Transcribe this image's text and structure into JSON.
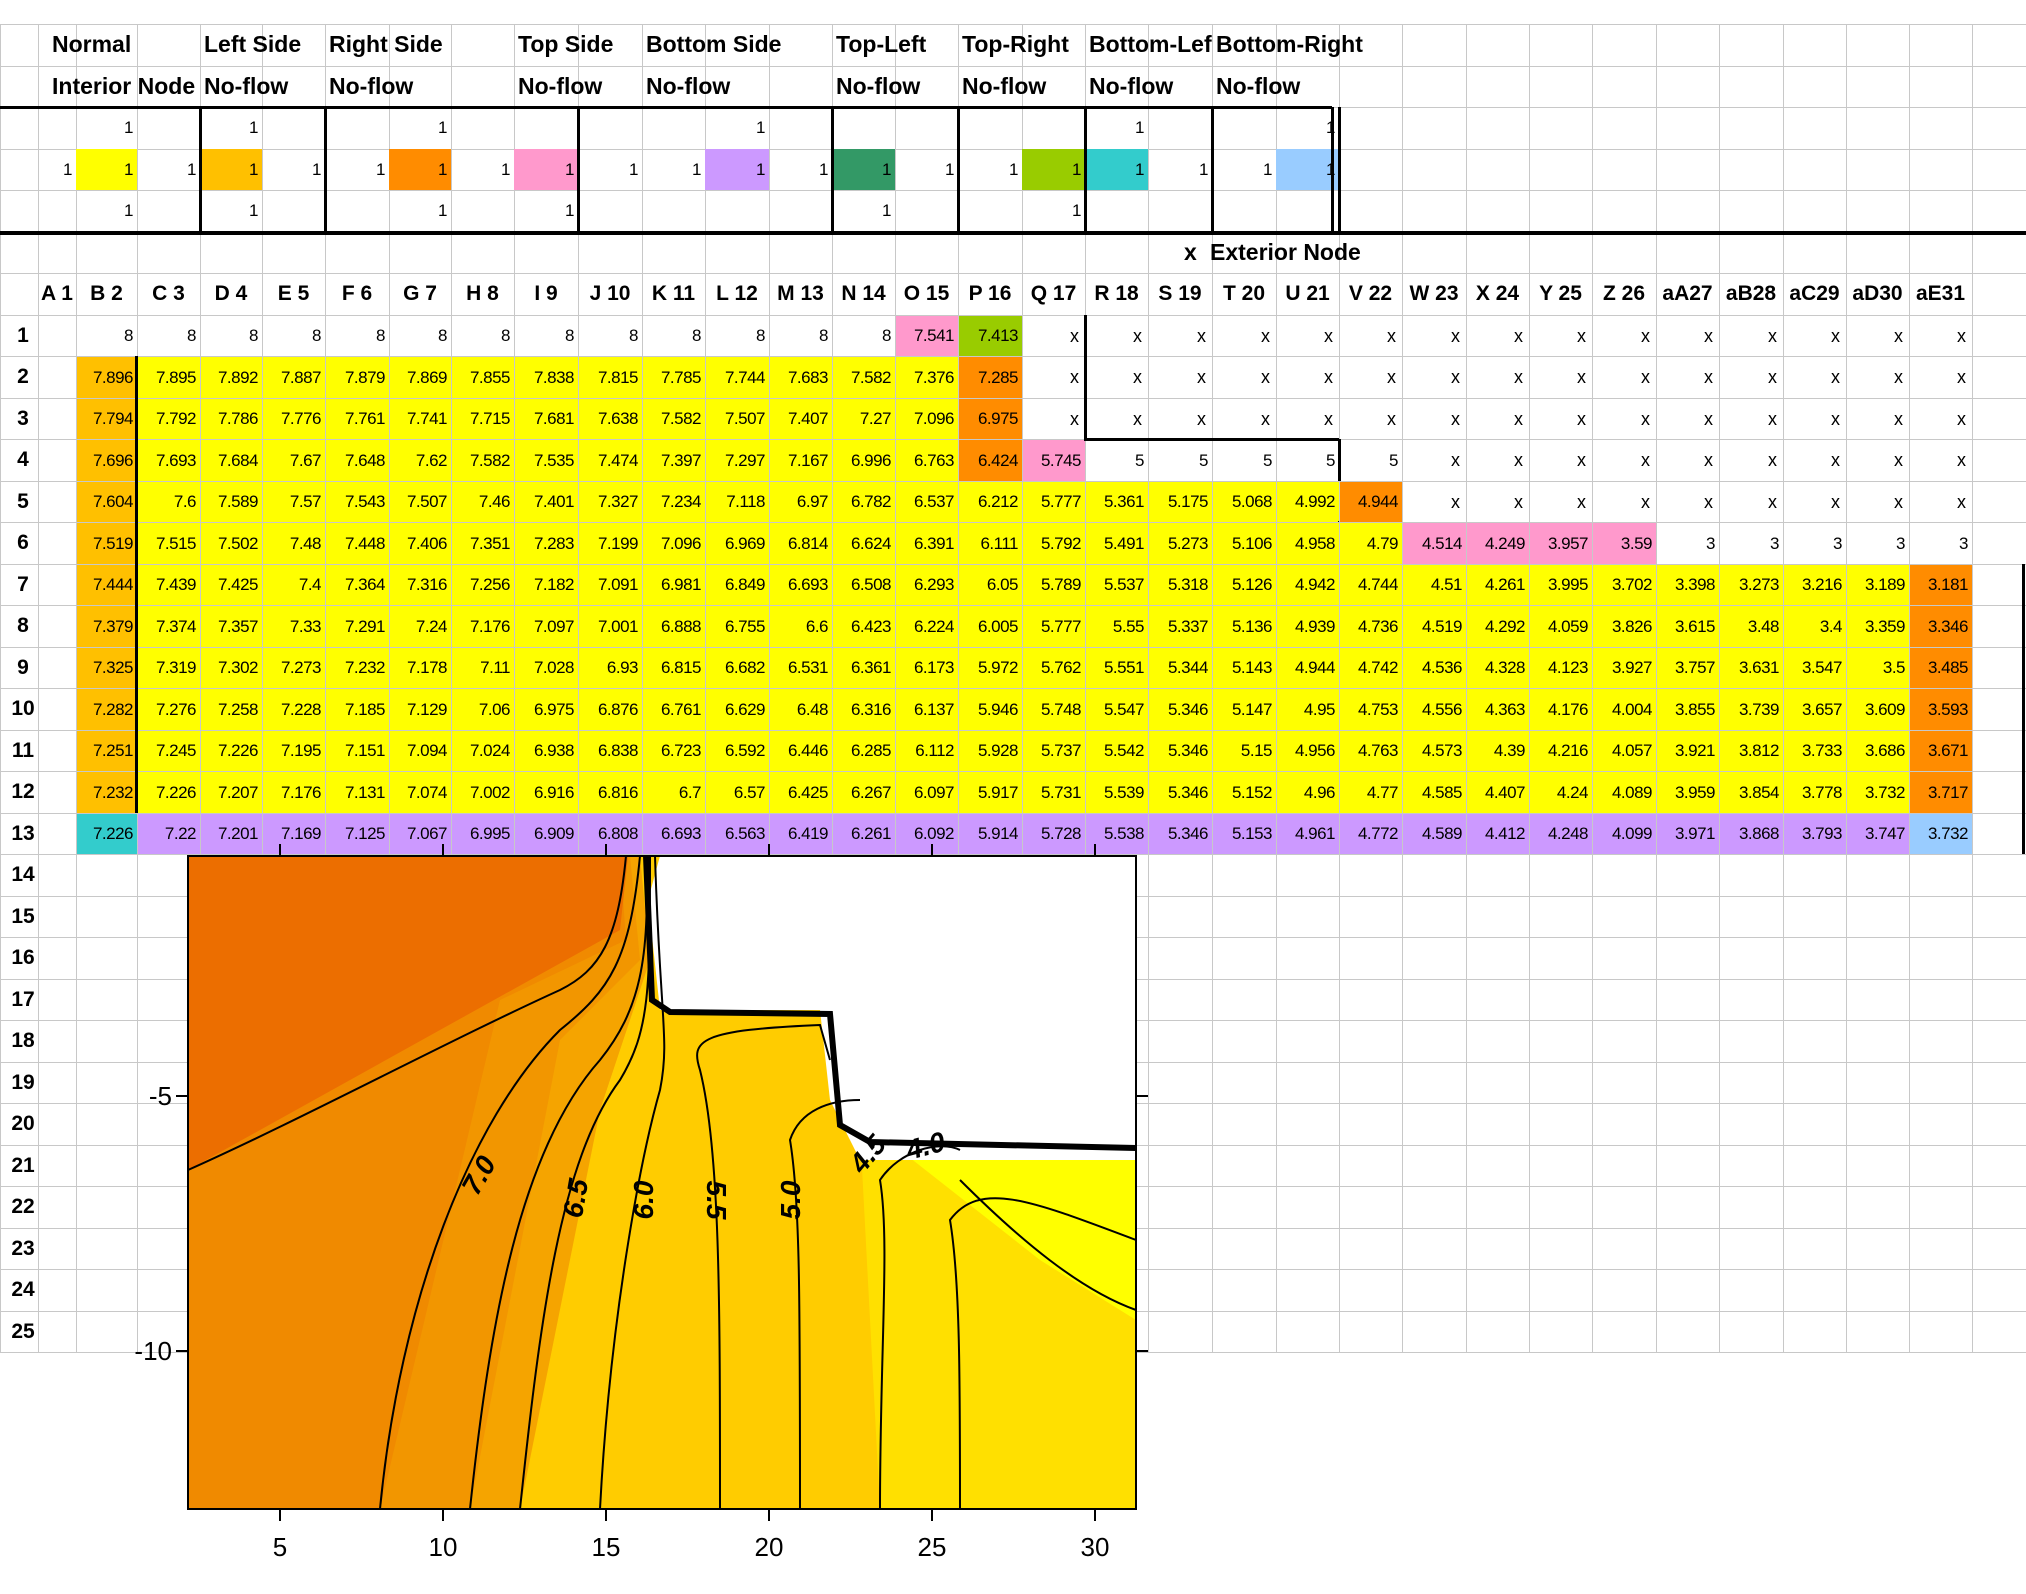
{
  "header_labels": [
    {
      "row": 0,
      "col": 0,
      "text": "Normal"
    },
    {
      "row": 1,
      "col": 0,
      "text": "Interior Node"
    },
    {
      "row": 0,
      "col": 3,
      "text": "Left Side"
    },
    {
      "row": 1,
      "col": 3,
      "text": "No-flow"
    },
    {
      "row": 0,
      "col": 5,
      "text": "Right Side"
    },
    {
      "row": 1,
      "col": 5,
      "text": "No-flow"
    },
    {
      "row": 0,
      "col": 8,
      "text": "Top Side"
    },
    {
      "row": 1,
      "col": 8,
      "text": "No-flow"
    },
    {
      "row": 0,
      "col": 10,
      "text": "Bottom Side"
    },
    {
      "row": 1,
      "col": 10,
      "text": "No-flow"
    },
    {
      "row": 0,
      "col": 13,
      "text": "Top-Left"
    },
    {
      "row": 1,
      "col": 13,
      "text": "No-flow"
    },
    {
      "row": 0,
      "col": 15,
      "text": "Top-Right"
    },
    {
      "row": 1,
      "col": 15,
      "text": "No-flow"
    },
    {
      "row": 0,
      "col": 17,
      "text": "Bottom-Lef"
    },
    {
      "row": 1,
      "col": 17,
      "text": "No-flow"
    },
    {
      "row": 0,
      "col": 19,
      "text": "Bottom-Right"
    },
    {
      "row": 1,
      "col": 19,
      "text": "No-flow"
    }
  ],
  "stencils": [
    {
      "name": "normal",
      "cells": [
        [
          2,
          1,
          "1"
        ],
        [
          3,
          0,
          "1"
        ],
        [
          3,
          1,
          "1"
        ],
        [
          3,
          2,
          "1"
        ],
        [
          4,
          1,
          "1"
        ]
      ],
      "center": [
        3,
        1
      ],
      "color": "#ffff00"
    },
    {
      "name": "left",
      "cells": [
        [
          2,
          3,
          "1"
        ],
        [
          3,
          3,
          "1"
        ],
        [
          3,
          4,
          "1"
        ],
        [
          4,
          3,
          "1"
        ]
      ],
      "center": [
        3,
        3
      ],
      "color": "#ffc000"
    },
    {
      "name": "right",
      "cells": [
        [
          2,
          6,
          "1"
        ],
        [
          3,
          5,
          "1"
        ],
        [
          3,
          6,
          "1"
        ],
        [
          4,
          6,
          "1"
        ]
      ],
      "center": [
        3,
        6
      ],
      "color": "#ff8c00"
    },
    {
      "name": "top",
      "cells": [
        [
          3,
          7,
          "1"
        ],
        [
          3,
          8,
          "1"
        ],
        [
          3,
          9,
          "1"
        ],
        [
          4,
          8,
          "1"
        ]
      ],
      "center": [
        3,
        8
      ],
      "color": "#ff99cc"
    },
    {
      "name": "bottom",
      "cells": [
        [
          2,
          11,
          "1"
        ],
        [
          3,
          10,
          "1"
        ],
        [
          3,
          11,
          "1"
        ],
        [
          3,
          12,
          "1"
        ]
      ],
      "center": [
        3,
        11
      ],
      "color": "#cc99ff"
    },
    {
      "name": "topleft",
      "cells": [
        [
          3,
          13,
          "1"
        ],
        [
          3,
          14,
          "1"
        ],
        [
          4,
          13,
          "1"
        ]
      ],
      "center": [
        3,
        13
      ],
      "color": "#339966"
    },
    {
      "name": "topright",
      "cells": [
        [
          3,
          15,
          "1"
        ],
        [
          3,
          16,
          "1"
        ],
        [
          4,
          16,
          "1"
        ]
      ],
      "center": [
        3,
        16
      ],
      "color": "#99cc00"
    },
    {
      "name": "bottomleft",
      "cells": [
        [
          2,
          17,
          "1"
        ],
        [
          3,
          17,
          "1"
        ],
        [
          3,
          18,
          "1"
        ]
      ],
      "center": [
        3,
        17
      ],
      "color": "#33cccc"
    },
    {
      "name": "bottomright",
      "cells": [
        [
          2,
          20,
          "1"
        ],
        [
          3,
          19,
          "1"
        ],
        [
          3,
          20,
          "1"
        ]
      ],
      "center": [
        3,
        20
      ],
      "color": "#99ccff"
    }
  ],
  "exterior_label": {
    "marker": "x",
    "text": "Exterior Node"
  },
  "col_headers": [
    "A 1",
    "B 2",
    "C 3",
    "D 4",
    "E 5",
    "F 6",
    "G 7",
    "H 8",
    "I 9",
    "J 10",
    "K 11",
    "L 12",
    "M 13",
    "N 14",
    "O 15",
    "P 16",
    "Q 17",
    "R 18",
    "S 19",
    "T 20",
    "U 21",
    "V 22",
    "W 23",
    "X 24",
    "Y 25",
    "Z 26",
    "aA27",
    "aB28",
    "aC29",
    "aD30",
    "aE31"
  ],
  "row_headers": [
    "1",
    "2",
    "3",
    "4",
    "5",
    "6",
    "7",
    "8",
    "9",
    "10",
    "11",
    "12",
    "13",
    "14",
    "15",
    "16",
    "17",
    "18",
    "19",
    "20",
    "21",
    "22",
    "23",
    "24",
    "25"
  ],
  "grid_values": [
    [
      "",
      "8",
      "8",
      "8",
      "8",
      "8",
      "8",
      "8",
      "8",
      "8",
      "8",
      "8",
      "8",
      "8",
      "7.541",
      "7.413",
      "x",
      "x",
      "x",
      "x",
      "x",
      "x",
      "x",
      "x",
      "x",
      "x",
      "x",
      "x",
      "x",
      "x",
      "x"
    ],
    [
      "",
      "7.896",
      "7.895",
      "7.892",
      "7.887",
      "7.879",
      "7.869",
      "7.855",
      "7.838",
      "7.815",
      "7.785",
      "7.744",
      "7.683",
      "7.582",
      "7.376",
      "7.285",
      "x",
      "x",
      "x",
      "x",
      "x",
      "x",
      "x",
      "x",
      "x",
      "x",
      "x",
      "x",
      "x",
      "x",
      "x"
    ],
    [
      "",
      "7.794",
      "7.792",
      "7.786",
      "7.776",
      "7.761",
      "7.741",
      "7.715",
      "7.681",
      "7.638",
      "7.582",
      "7.507",
      "7.407",
      "7.27",
      "7.096",
      "6.975",
      "x",
      "x",
      "x",
      "x",
      "x",
      "x",
      "x",
      "x",
      "x",
      "x",
      "x",
      "x",
      "x",
      "x",
      "x"
    ],
    [
      "",
      "7.696",
      "7.693",
      "7.684",
      "7.67",
      "7.648",
      "7.62",
      "7.582",
      "7.535",
      "7.474",
      "7.397",
      "7.297",
      "7.167",
      "6.996",
      "6.763",
      "6.424",
      "5.745",
      "5",
      "5",
      "5",
      "5",
      "5",
      "x",
      "x",
      "x",
      "x",
      "x",
      "x",
      "x",
      "x",
      "x"
    ],
    [
      "",
      "7.604",
      "7.6",
      "7.589",
      "7.57",
      "7.543",
      "7.507",
      "7.46",
      "7.401",
      "7.327",
      "7.234",
      "7.118",
      "6.97",
      "6.782",
      "6.537",
      "6.212",
      "5.777",
      "5.361",
      "5.175",
      "5.068",
      "4.992",
      "4.944",
      "x",
      "x",
      "x",
      "x",
      "x",
      "x",
      "x",
      "x",
      "x"
    ],
    [
      "",
      "7.519",
      "7.515",
      "7.502",
      "7.48",
      "7.448",
      "7.406",
      "7.351",
      "7.283",
      "7.199",
      "7.096",
      "6.969",
      "6.814",
      "6.624",
      "6.391",
      "6.111",
      "5.792",
      "5.491",
      "5.273",
      "5.106",
      "4.958",
      "4.79",
      "4.514",
      "4.249",
      "3.957",
      "3.59",
      "3",
      "3",
      "3",
      "3",
      "3"
    ],
    [
      "",
      "7.444",
      "7.439",
      "7.425",
      "7.4",
      "7.364",
      "7.316",
      "7.256",
      "7.182",
      "7.091",
      "6.981",
      "6.849",
      "6.693",
      "6.508",
      "6.293",
      "6.05",
      "5.789",
      "5.537",
      "5.318",
      "5.126",
      "4.942",
      "4.744",
      "4.51",
      "4.261",
      "3.995",
      "3.702",
      "3.398",
      "3.273",
      "3.216",
      "3.189",
      "3.181"
    ],
    [
      "",
      "7.379",
      "7.374",
      "7.357",
      "7.33",
      "7.291",
      "7.24",
      "7.176",
      "7.097",
      "7.001",
      "6.888",
      "6.755",
      "6.6",
      "6.423",
      "6.224",
      "6.005",
      "5.777",
      "5.55",
      "5.337",
      "5.136",
      "4.939",
      "4.736",
      "4.519",
      "4.292",
      "4.059",
      "3.826",
      "3.615",
      "3.48",
      "3.4",
      "3.359",
      "3.346"
    ],
    [
      "",
      "7.325",
      "7.319",
      "7.302",
      "7.273",
      "7.232",
      "7.178",
      "7.11",
      "7.028",
      "6.93",
      "6.815",
      "6.682",
      "6.531",
      "6.361",
      "6.173",
      "5.972",
      "5.762",
      "5.551",
      "5.344",
      "5.143",
      "4.944",
      "4.742",
      "4.536",
      "4.328",
      "4.123",
      "3.927",
      "3.757",
      "3.631",
      "3.547",
      "3.5",
      "3.485"
    ],
    [
      "",
      "7.282",
      "7.276",
      "7.258",
      "7.228",
      "7.185",
      "7.129",
      "7.06",
      "6.975",
      "6.876",
      "6.761",
      "6.629",
      "6.48",
      "6.316",
      "6.137",
      "5.946",
      "5.748",
      "5.547",
      "5.346",
      "5.147",
      "4.95",
      "4.753",
      "4.556",
      "4.363",
      "4.176",
      "4.004",
      "3.855",
      "3.739",
      "3.657",
      "3.609",
      "3.593"
    ],
    [
      "",
      "7.251",
      "7.245",
      "7.226",
      "7.195",
      "7.151",
      "7.094",
      "7.024",
      "6.938",
      "6.838",
      "6.723",
      "6.592",
      "6.446",
      "6.285",
      "6.112",
      "5.928",
      "5.737",
      "5.542",
      "5.346",
      "5.15",
      "4.956",
      "4.763",
      "4.573",
      "4.39",
      "4.216",
      "4.057",
      "3.921",
      "3.812",
      "3.733",
      "3.686",
      "3.671"
    ],
    [
      "",
      "7.232",
      "7.226",
      "7.207",
      "7.176",
      "7.131",
      "7.074",
      "7.002",
      "6.916",
      "6.816",
      "6.7",
      "6.57",
      "6.425",
      "6.267",
      "6.097",
      "5.917",
      "5.731",
      "5.539",
      "5.346",
      "5.152",
      "4.96",
      "4.77",
      "4.585",
      "4.407",
      "4.24",
      "4.089",
      "3.959",
      "3.854",
      "3.778",
      "3.732",
      "3.717"
    ],
    [
      "",
      "7.226",
      "7.22",
      "7.201",
      "7.169",
      "7.125",
      "7.067",
      "6.995",
      "6.909",
      "6.808",
      "6.693",
      "6.563",
      "6.419",
      "6.261",
      "6.092",
      "5.914",
      "5.728",
      "5.538",
      "5.346",
      "5.153",
      "4.961",
      "4.772",
      "4.589",
      "4.412",
      "4.248",
      "4.099",
      "3.971",
      "3.868",
      "3.793",
      "3.747",
      "3.732"
    ]
  ],
  "colors": {
    "yellow": "#ffff00",
    "orange_light": "#ffc000",
    "orange": "#ff8c00",
    "pink": "#ff99cc",
    "violet": "#cc99ff",
    "teal": "#339966",
    "lime": "#99cc00",
    "cyan": "#33cccc",
    "lightblue": "#99ccff"
  },
  "contour_plot": {
    "x_ticks": [
      "5",
      "10",
      "15",
      "20",
      "25",
      "30"
    ],
    "y_ticks": [
      "-5",
      "-10"
    ],
    "contour_labels": [
      "7.0",
      "6.5",
      "6.0",
      "5.5",
      "5.0",
      "4.5",
      "4.0"
    ]
  }
}
